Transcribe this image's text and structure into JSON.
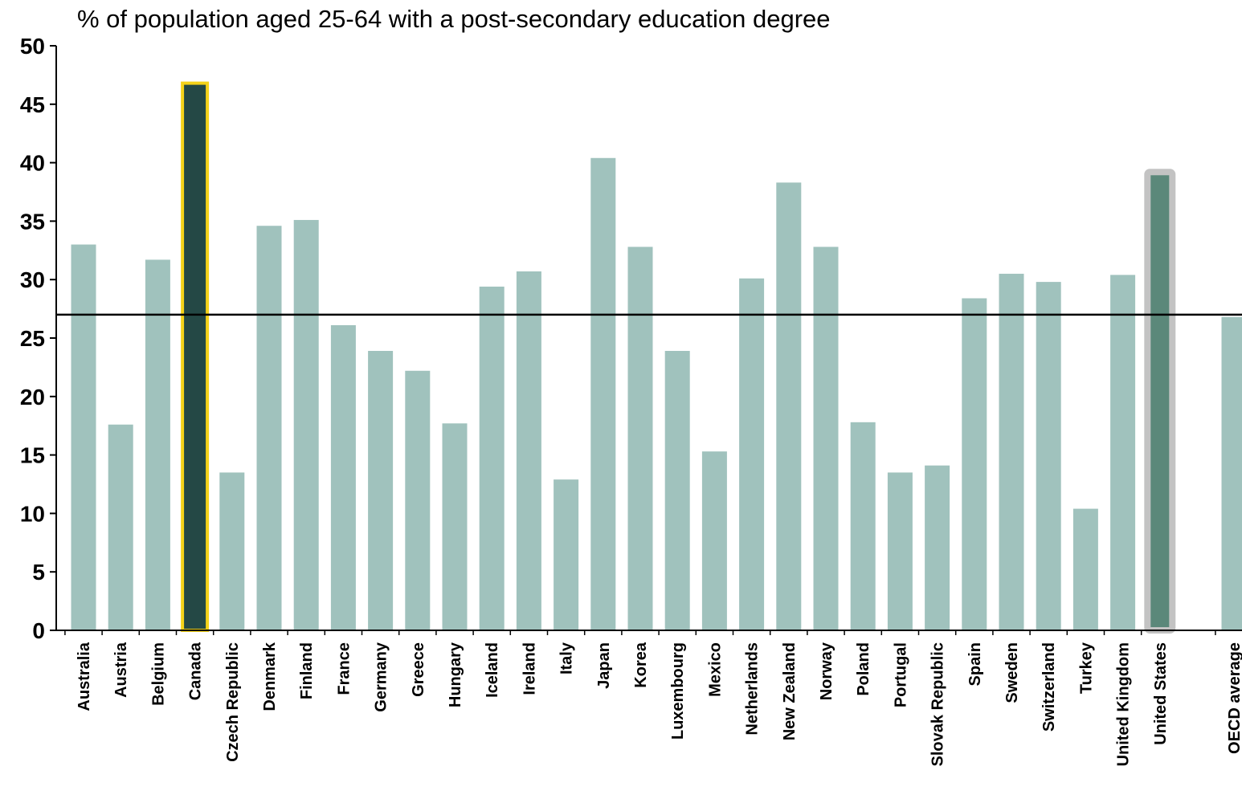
{
  "chart_data": {
    "type": "bar",
    "title": "% of population aged 25-64 with a post-secondary education degree",
    "xlabel": "",
    "ylabel": "",
    "ylim": [
      0,
      50
    ],
    "yticks": [
      0,
      5,
      10,
      15,
      20,
      25,
      30,
      35,
      40,
      45,
      50
    ],
    "grid": false,
    "reference_line": 27,
    "categories": [
      "Australia",
      "Austria",
      "Belgium",
      "Canada",
      "Czech Republic",
      "Denmark",
      "Finland",
      "France",
      "Germany",
      "Greece",
      "Hungary",
      "Iceland",
      "Ireland",
      "Italy",
      "Japan",
      "Korea",
      "Luxembourg",
      "Mexico",
      "Netherlands",
      "New Zealand",
      "Norway",
      "Poland",
      "Portugal",
      "Slovak Republic",
      "Spain",
      "Sweden",
      "Switzerland",
      "Turkey",
      "United Kingdom",
      "United States",
      "OECD average"
    ],
    "values": [
      33.0,
      17.6,
      31.7,
      46.8,
      13.5,
      34.6,
      35.1,
      26.1,
      23.9,
      22.2,
      17.7,
      29.4,
      30.7,
      12.9,
      40.4,
      32.8,
      23.9,
      15.3,
      30.1,
      38.3,
      32.8,
      17.8,
      13.5,
      14.1,
      28.4,
      30.5,
      29.8,
      10.4,
      30.4,
      39.2,
      26.8
    ],
    "highlights": {
      "Canada": {
        "fill": "#244845",
        "outline": "#f5d31a"
      },
      "United States": {
        "fill": "#5b887a",
        "outline": "#c3c3c3"
      }
    },
    "colors": {
      "bar": "#a0c2bd",
      "axis": "#000000",
      "reference_line": "#000000"
    }
  }
}
